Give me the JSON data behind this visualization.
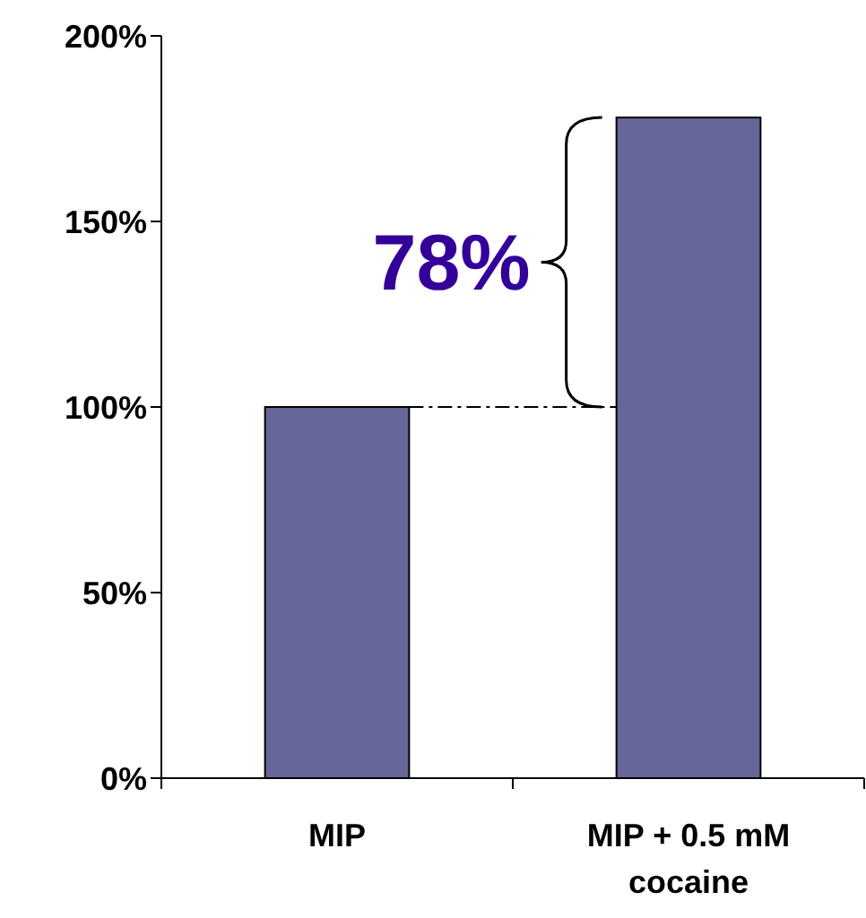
{
  "chart_data": {
    "type": "bar",
    "categories": [
      "MIP",
      "MIP + 0.5 mM cocaine"
    ],
    "values": [
      100,
      178
    ],
    "color": "#666699",
    "ylim": [
      0,
      200
    ],
    "yticks": [
      {
        "value": 0,
        "label": "0%"
      },
      {
        "value": 50,
        "label": "50%"
      },
      {
        "value": 100,
        "label": "100%"
      },
      {
        "value": 150,
        "label": "150%"
      },
      {
        "value": 200,
        "label": "200%"
      }
    ],
    "grid": false,
    "ref_lines": [
      {
        "axis": "y",
        "value": 100,
        "line_style": "dashed",
        "color": "#000000"
      }
    ],
    "annotations": [
      "78%"
    ]
  }
}
